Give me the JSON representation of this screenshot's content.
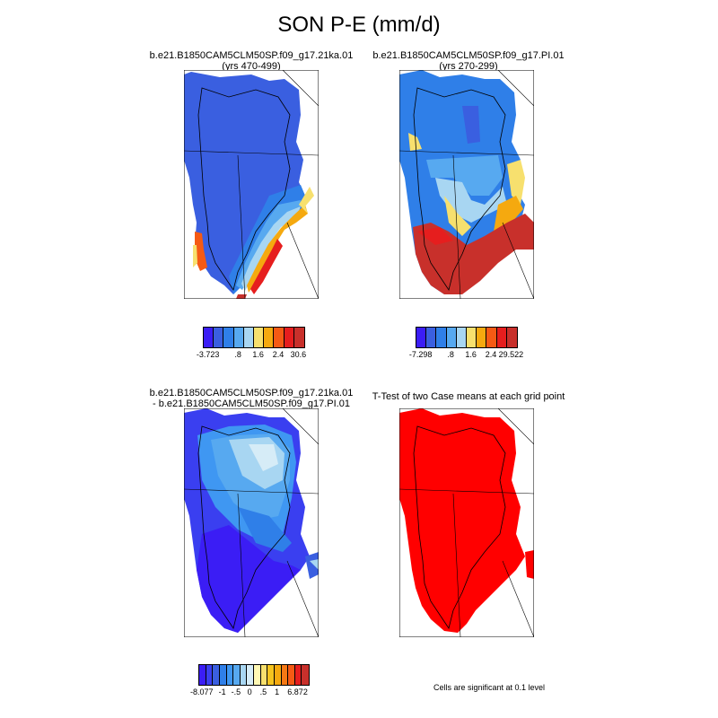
{
  "title": "SON P-E (mm/d)",
  "panels": [
    {
      "id": "p1",
      "line1": "b.e21.B1850CAM5CLM50SP.f09_g17.21ka.01",
      "line2": "(yrs 470-499)"
    },
    {
      "id": "p2",
      "line1": "b.e21.B1850CAM5CLM50SP.f09_g17.PI.01",
      "line2": "(yrs 270-299)"
    },
    {
      "id": "p3",
      "line1": "b.e21.B1850CAM5CLM50SP.f09_g17.21ka.01",
      "line2": "- b.e21.B1850CAM5CLM50SP.f09_g17.PI.01"
    },
    {
      "id": "p4",
      "line1": "T-Test of two Case means at each grid point",
      "line2": ""
    }
  ],
  "colorbars": [
    {
      "colors": [
        "#3b1df5",
        "#3a5fe0",
        "#2f7fe8",
        "#57a9f0",
        "#a8d6f2",
        "#f7e06e",
        "#f5a90f",
        "#f55a14",
        "#e61e1e",
        "#c8302b"
      ],
      "labels": [
        {
          "text": "-3.723",
          "at": 1
        },
        {
          "text": ".8",
          "at": 4
        },
        {
          "text": "1.6",
          "at": 6
        },
        {
          "text": "2.4",
          "at": 8
        },
        {
          "text": "30.6",
          "at": 10
        }
      ]
    },
    {
      "colors": [
        "#3b1df5",
        "#3a5fe0",
        "#2f7fe8",
        "#57a9f0",
        "#a8d6f2",
        "#f7e06e",
        "#f5a90f",
        "#f55a14",
        "#e61e1e",
        "#c8302b"
      ],
      "labels": [
        {
          "text": "-7.298",
          "at": 1
        },
        {
          "text": ".8",
          "at": 4
        },
        {
          "text": "1.6",
          "at": 6
        },
        {
          "text": "2.4",
          "at": 8
        },
        {
          "text": "29.522",
          "at": 10
        }
      ]
    },
    {
      "colors": [
        "#3b1df5",
        "#3a3ff0",
        "#3a5fe0",
        "#2f7fe8",
        "#3f97f2",
        "#57a9f0",
        "#a8d6f2",
        "#d6ecf7",
        "#fff8b4",
        "#f7e06e",
        "#f5c41f",
        "#f5a90f",
        "#f57814",
        "#f55a14",
        "#e61e1e",
        "#c8302b"
      ],
      "labels": [
        {
          "text": "-8.077",
          "at": 1
        },
        {
          "text": "-1",
          "at": 4
        },
        {
          "text": "-.5",
          "at": 6
        },
        {
          "text": "0",
          "at": 8
        },
        {
          "text": ".5",
          "at": 10
        },
        {
          "text": "1",
          "at": 12
        },
        {
          "text": "6.872",
          "at": 15
        }
      ]
    }
  ],
  "significance_note": "Cells are significant at 0.1 level"
}
